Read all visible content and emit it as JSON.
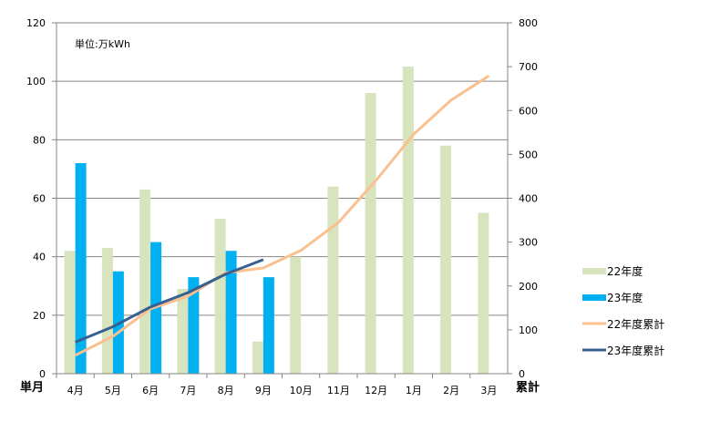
{
  "chart_data": {
    "type": "bar",
    "unit_note": "単位:万kWh",
    "categories": [
      "4月",
      "5月",
      "6月",
      "7月",
      "8月",
      "9月",
      "10月",
      "11月",
      "12月",
      "1月",
      "2月",
      "3月"
    ],
    "left_axis": {
      "label": "単月",
      "ylim": [
        0,
        120
      ],
      "ticks": [
        0,
        20,
        40,
        60,
        80,
        100,
        120
      ]
    },
    "right_axis": {
      "label": "累計",
      "ylim": [
        0,
        800
      ],
      "ticks": [
        0,
        100,
        200,
        300,
        400,
        500,
        600,
        700,
        800
      ]
    },
    "grid": true,
    "legend_position": "right",
    "series": [
      {
        "name": "22年度",
        "kind": "bar",
        "axis": "left",
        "color": "#d7e4bd",
        "values": [
          42,
          43,
          63,
          29,
          53,
          11,
          40,
          64,
          96,
          105,
          78,
          55
        ]
      },
      {
        "name": "23年度",
        "kind": "bar",
        "axis": "left",
        "color": "#00b0f0",
        "values": [
          72,
          35,
          45,
          33,
          42,
          33,
          null,
          null,
          null,
          null,
          null,
          null
        ]
      },
      {
        "name": "22年度累計",
        "kind": "line",
        "axis": "right",
        "color": "#fac090",
        "values": [
          42,
          85,
          148,
          177,
          230,
          241,
          281,
          345,
          441,
          546,
          624,
          679
        ]
      },
      {
        "name": "23年度累計",
        "kind": "line",
        "axis": "right",
        "color": "#376092",
        "values": [
          72,
          107,
          152,
          185,
          227,
          260,
          null,
          null,
          null,
          null,
          null,
          null
        ]
      }
    ]
  }
}
